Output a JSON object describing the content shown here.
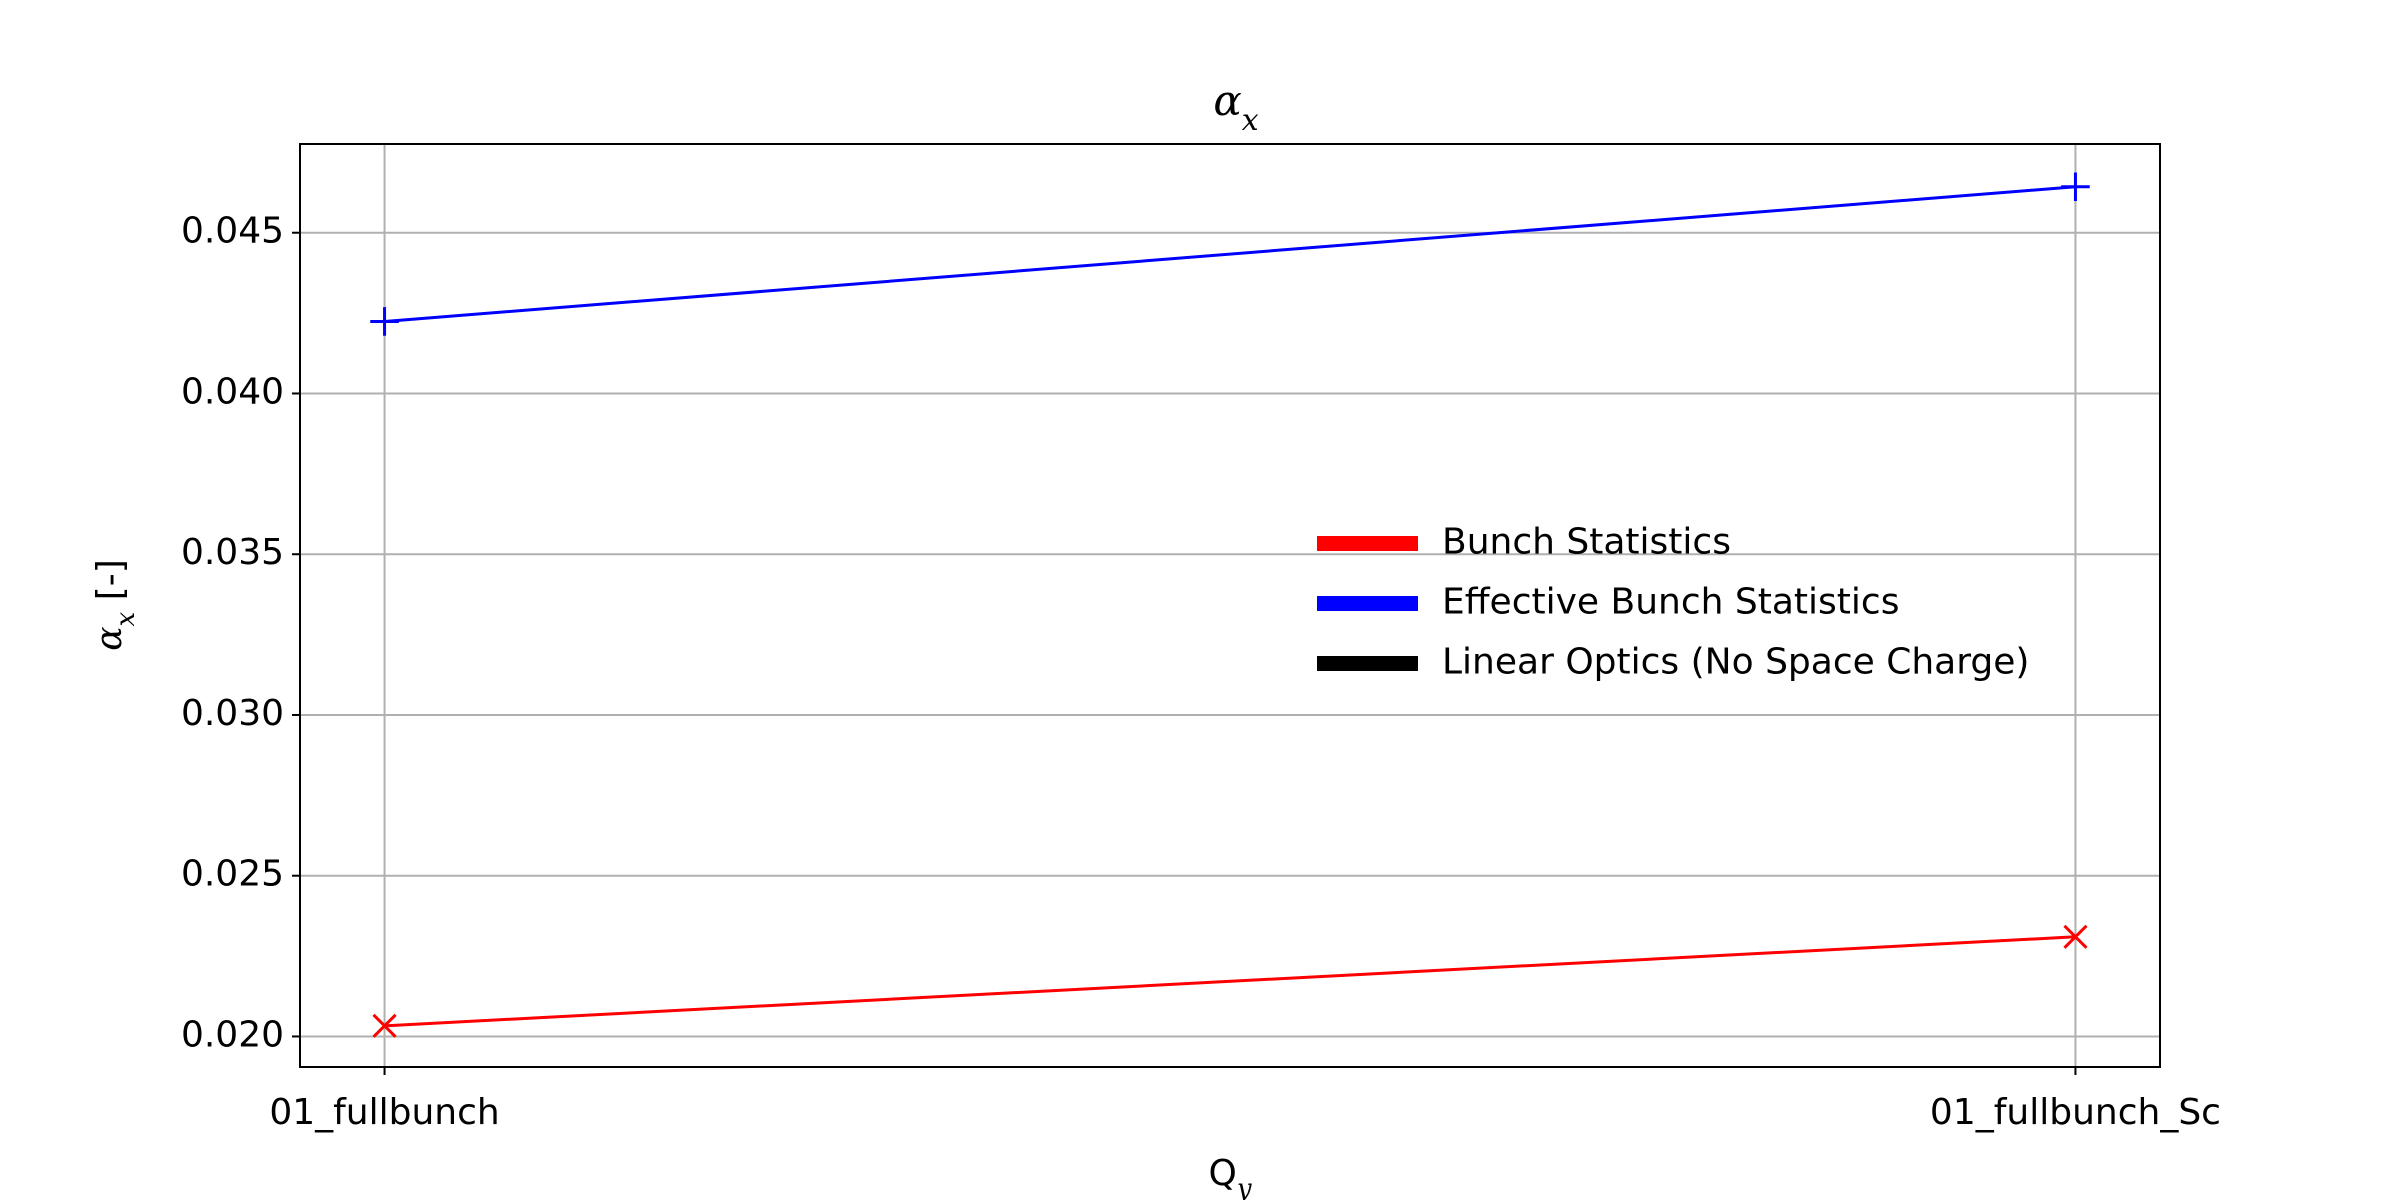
{
  "chart_data": {
    "type": "line",
    "title": [
      "α",
      "x"
    ],
    "xlabel": [
      "Q",
      "y"
    ],
    "ylabel": [
      "α",
      "x",
      " [-]"
    ],
    "categories": [
      "01_fullbunch",
      "01_fullbunch_Sc"
    ],
    "series": [
      {
        "name": "Bunch Statistics",
        "color": "#ff0000",
        "marker": "x",
        "values": [
          0.02033,
          0.0231
        ]
      },
      {
        "name": "Effective Bunch Statistics",
        "color": "#0000ff",
        "marker": "+",
        "values": [
          0.04224,
          0.04643
        ]
      },
      {
        "name": "Linear Optics (No Space Charge)",
        "color": "#000000",
        "marker": "none",
        "values": [
          null,
          null
        ]
      }
    ],
    "xlim": [
      -0.05,
      1.05
    ],
    "ylim": [
      0.01905,
      0.04776
    ],
    "yticks": [
      {
        "value": 0.02,
        "label": "0.020"
      },
      0.025,
      {
        "value": 0.03,
        "label": "0.030"
      },
      0.035,
      {
        "value": 0.04,
        "label": "0.040"
      },
      0.045
    ],
    "grid": true,
    "legend": "center right"
  }
}
